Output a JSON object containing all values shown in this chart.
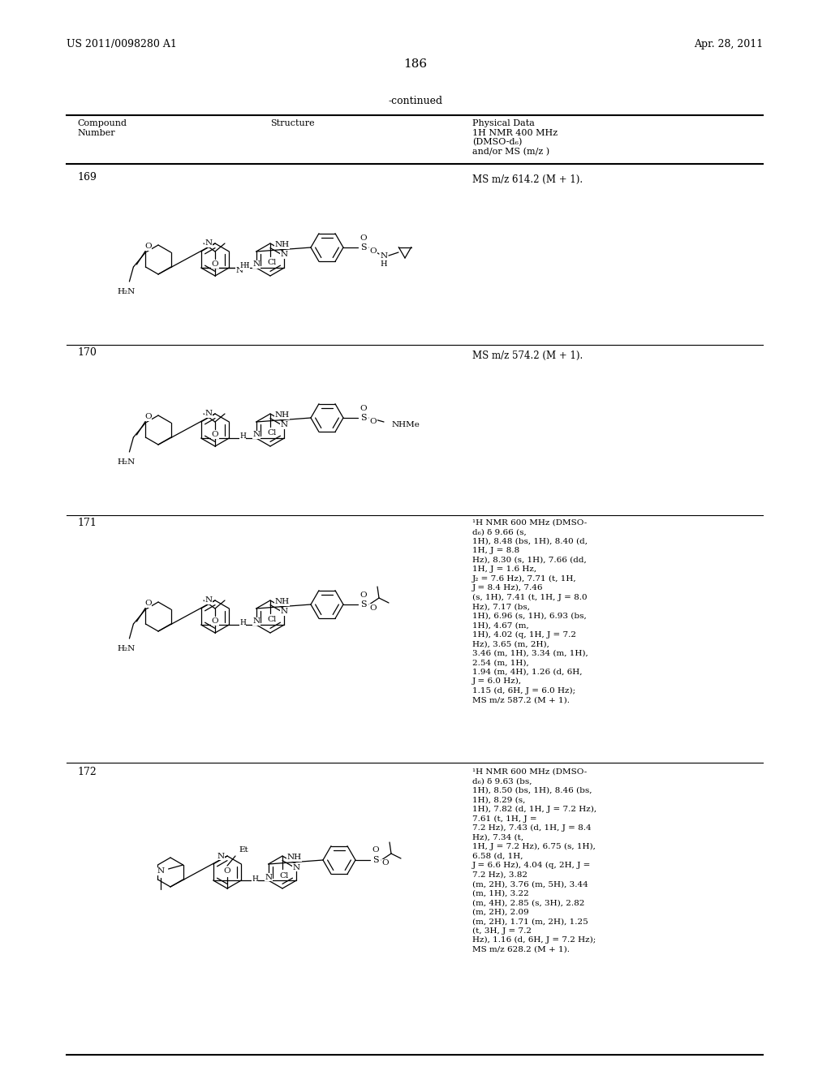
{
  "patent_number": "US 2011/0098280 A1",
  "date": "Apr. 28, 2011",
  "page_number": "186",
  "continued_text": "-continued",
  "header_col1": "Compound\nNumber",
  "header_col2": "Structure",
  "header_col3": "Physical Data\n1H NMR 400 MHz\n(DMSO-d₆)\nand/or MS (m/z )",
  "bg_color": "#ffffff",
  "text_color": "#000000",
  "c169_data": "MS m/z 614.2 (M + 1).",
  "c170_data": "MS m/z 574.2 (M + 1).",
  "c171_data": "¹H NMR 600 MHz (DMSO-\nd₆) δ 9.66 (s,\n1H), 8.48 (bs, 1H), 8.40 (d,\n1H, J = 8.8\nHz), 8.30 (s, 1H), 7.66 (dd,\n1H, J = 1.6 Hz,\nJ₂ = 7.6 Hz), 7.71 (t, 1H,\nJ = 8.4 Hz), 7.46\n(s, 1H), 7.41 (t, 1H, J = 8.0\nHz), 7.17 (bs,\n1H), 6.96 (s, 1H), 6.93 (bs,\n1H), 4.67 (m,\n1H), 4.02 (q, 1H, J = 7.2\nHz), 3.65 (m, 2H),\n3.46 (m, 1H), 3.34 (m, 1H),\n2.54 (m, 1H),\n1.94 (m, 4H), 1.26 (d, 6H,\nJ = 6.0 Hz),\n1.15 (d, 6H, J = 6.0 Hz);\nMS m/z 587.2 (M + 1).",
  "c172_data": "¹H NMR 600 MHz (DMSO-\nd₆) δ 9.63 (bs,\n1H), 8.50 (bs, 1H), 8.46 (bs,\n1H), 8.29 (s,\n1H), 7.82 (d, 1H, J = 7.2 Hz),\n7.61 (t, 1H, J =\n7.2 Hz), 7.43 (d, 1H, J = 8.4\nHz), 7.34 (t,\n1H, J = 7.2 Hz), 6.75 (s, 1H),\n6.58 (d, 1H,\nJ = 6.6 Hz), 4.04 (q, 2H, J =\n7.2 Hz), 3.82\n(m, 2H), 3.76 (m, 5H), 3.44\n(m, 1H), 3.22\n(m, 4H), 2.85 (s, 3H), 2.82\n(m, 2H), 2.09\n(m, 2H), 1.71 (m, 2H), 1.25\n(t, 3H, J = 7.2\nHz), 1.16 (d, 6H, J = 7.2 Hz);\nMS m/z 628.2 (M + 1)."
}
